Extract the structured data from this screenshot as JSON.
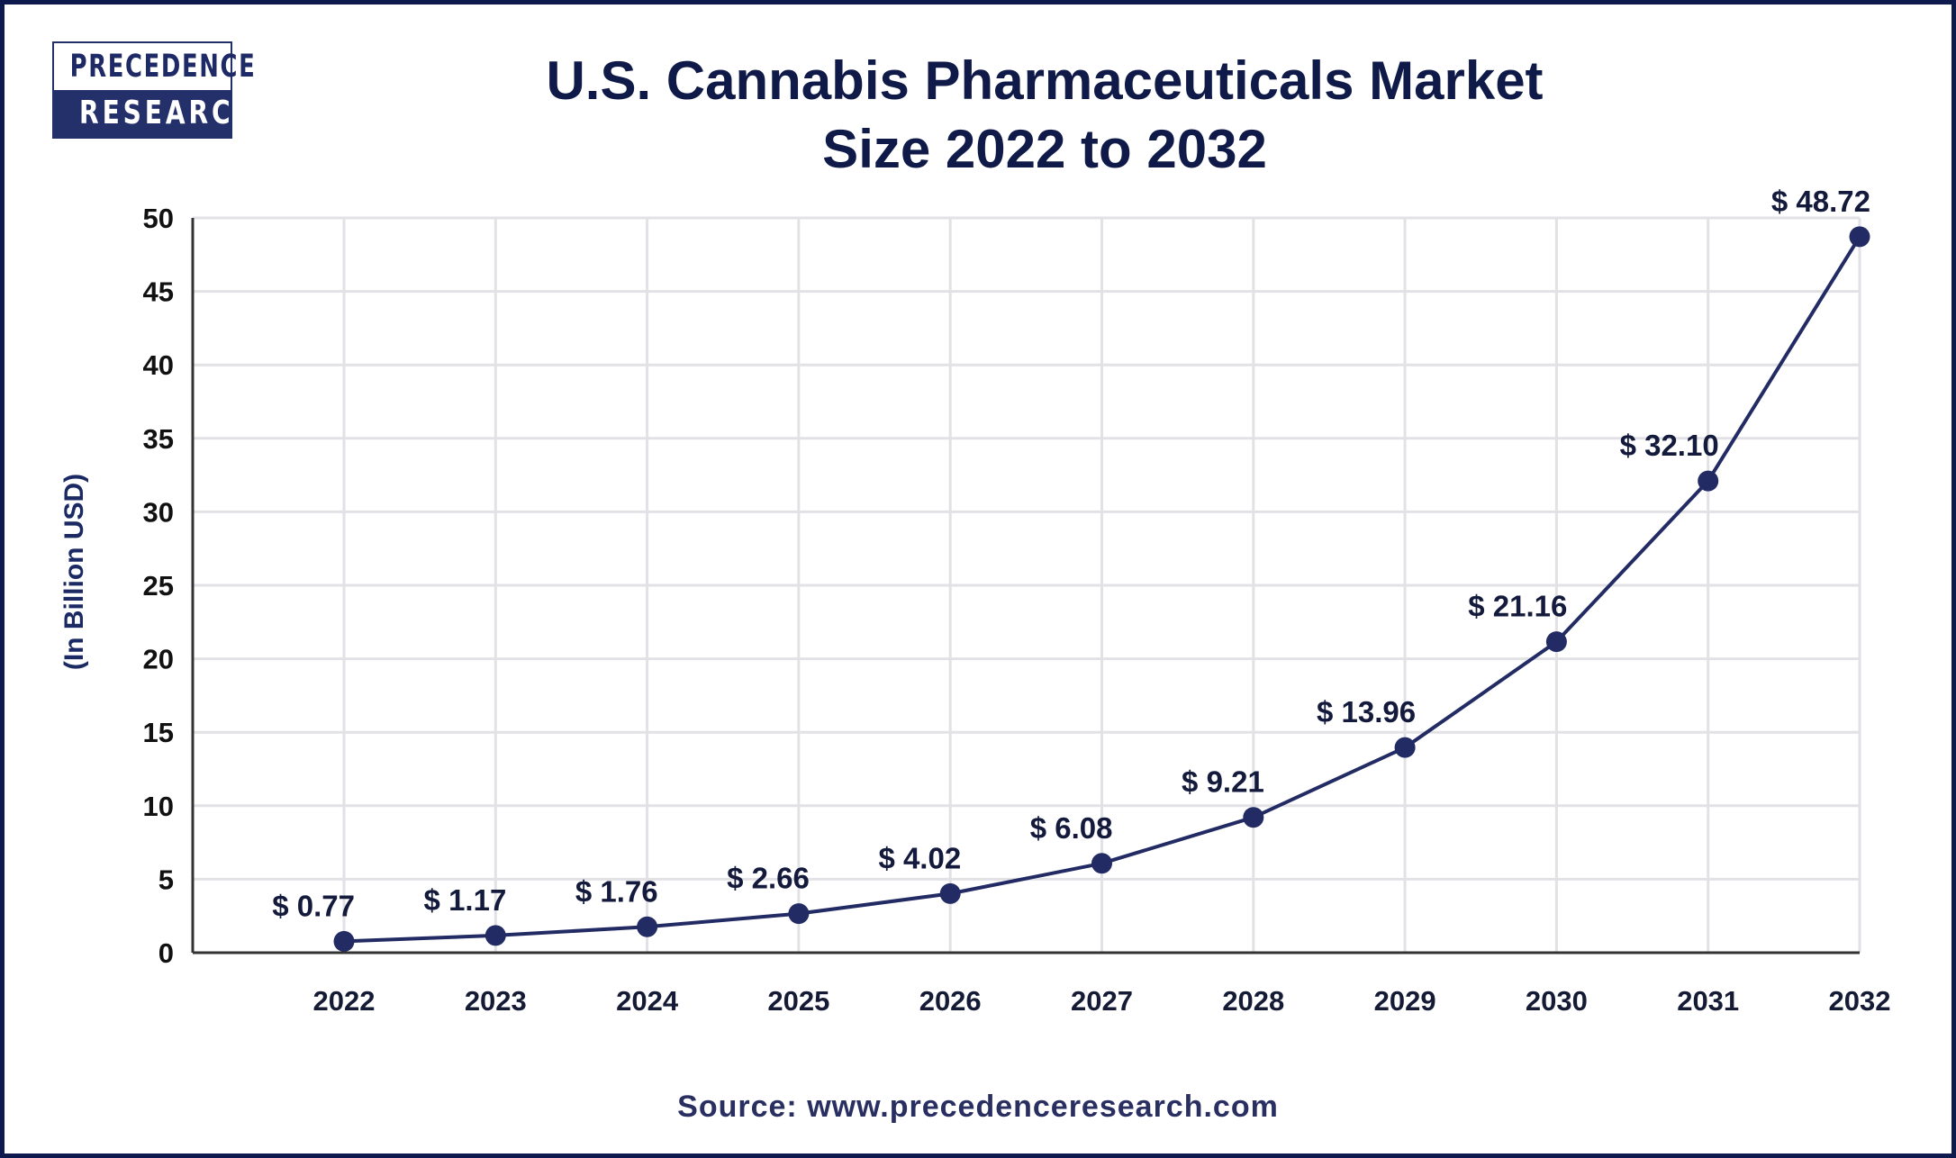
{
  "logo": {
    "line1": "PRECEDENCE",
    "line2": "RESEARCH"
  },
  "title": {
    "line1": "U.S. Cannabis Pharmaceuticals Market",
    "line2": "Size 2022 to 2032"
  },
  "source": "Source: www.precedenceresearch.com",
  "colors": {
    "line": "#222b63",
    "marker": "#222b63",
    "grid": "#e2e2e6",
    "axis": "#333333",
    "border": "#0e1a4d"
  },
  "chart_data": {
    "type": "line",
    "title": "U.S. Cannabis Pharmaceuticals Market Size 2022 to 2032",
    "xlabel": "",
    "ylabel": "(In Billion USD)",
    "categories": [
      "2022",
      "2023",
      "2024",
      "2025",
      "2026",
      "2027",
      "2028",
      "2029",
      "2030",
      "2031",
      "2032"
    ],
    "values": [
      0.77,
      1.17,
      1.76,
      2.66,
      4.02,
      6.08,
      9.21,
      13.96,
      21.16,
      32.1,
      48.72
    ],
    "data_labels": [
      "$ 0.77",
      "$ 1.17",
      "$ 1.76",
      "$ 2.66",
      "$ 4.02",
      "$ 6.08",
      "$ 9.21",
      "$ 13.96",
      "$ 21.16",
      "$ 32.10",
      "$ 48.72"
    ],
    "yticks": [
      0,
      5,
      10,
      15,
      20,
      25,
      30,
      35,
      40,
      45,
      50
    ],
    "ylim": [
      0,
      50
    ],
    "grid": true,
    "legend": "none"
  }
}
